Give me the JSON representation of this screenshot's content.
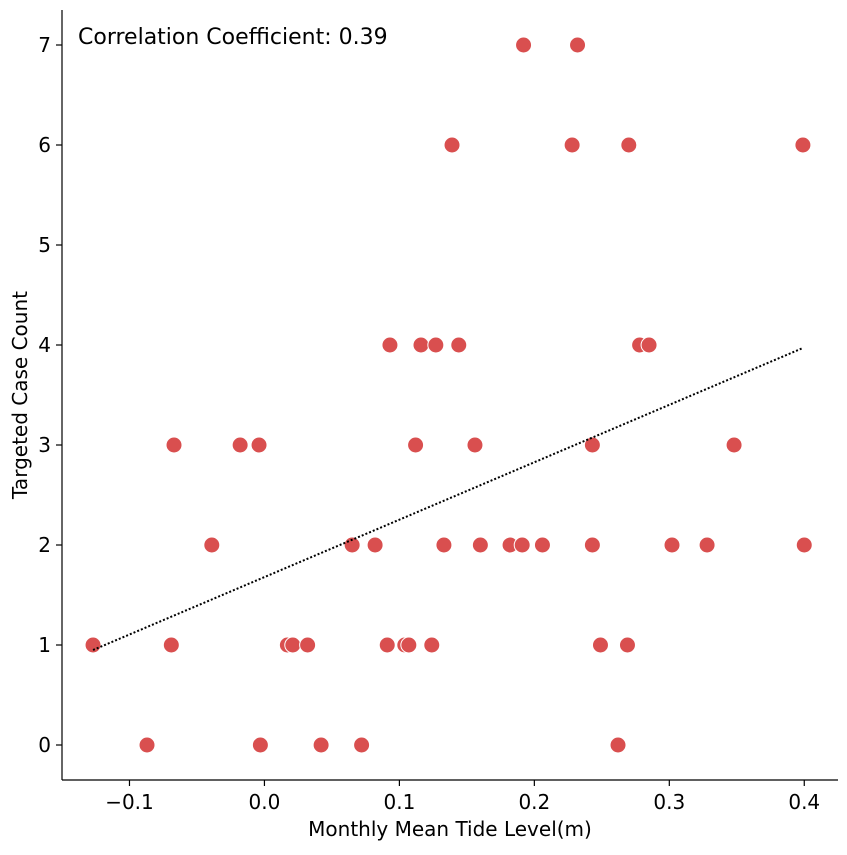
{
  "chart_data": {
    "type": "scatter",
    "annotation": "Correlation Coefficient: 0.39",
    "xlabel": "Monthly Mean Tide Level(m)",
    "ylabel": "Targeted Case Count",
    "xlim": [
      -0.15,
      0.425
    ],
    "ylim": [
      -0.35,
      7.35
    ],
    "xticks": [
      -0.1,
      0.0,
      0.1,
      0.2,
      0.3,
      0.4
    ],
    "xtick_labels": [
      "−0.1",
      "0.0",
      "0.1",
      "0.2",
      "0.3",
      "0.4"
    ],
    "yticks": [
      0,
      1,
      2,
      3,
      4,
      5,
      6,
      7
    ],
    "ytick_labels": [
      "0",
      "1",
      "2",
      "3",
      "4",
      "5",
      "6",
      "7"
    ],
    "grid": false,
    "point_color": "#d94f4f",
    "trend_color": "#000000",
    "trend_line": {
      "x": [
        -0.127,
        0.399
      ],
      "y": [
        0.95,
        3.97
      ]
    },
    "points": [
      {
        "x": -0.127,
        "y": 1
      },
      {
        "x": -0.087,
        "y": 0
      },
      {
        "x": -0.069,
        "y": 1
      },
      {
        "x": -0.067,
        "y": 3
      },
      {
        "x": -0.039,
        "y": 2
      },
      {
        "x": -0.018,
        "y": 3
      },
      {
        "x": -0.004,
        "y": 3
      },
      {
        "x": -0.003,
        "y": 0
      },
      {
        "x": 0.017,
        "y": 1
      },
      {
        "x": 0.021,
        "y": 1
      },
      {
        "x": 0.032,
        "y": 1
      },
      {
        "x": 0.042,
        "y": 0
      },
      {
        "x": 0.065,
        "y": 2
      },
      {
        "x": 0.072,
        "y": 0
      },
      {
        "x": 0.082,
        "y": 2
      },
      {
        "x": 0.091,
        "y": 1
      },
      {
        "x": 0.093,
        "y": 4
      },
      {
        "x": 0.104,
        "y": 1
      },
      {
        "x": 0.107,
        "y": 1
      },
      {
        "x": 0.112,
        "y": 3
      },
      {
        "x": 0.116,
        "y": 4
      },
      {
        "x": 0.124,
        "y": 1
      },
      {
        "x": 0.127,
        "y": 4
      },
      {
        "x": 0.133,
        "y": 2
      },
      {
        "x": 0.139,
        "y": 6
      },
      {
        "x": 0.144,
        "y": 4
      },
      {
        "x": 0.156,
        "y": 3
      },
      {
        "x": 0.16,
        "y": 2
      },
      {
        "x": 0.182,
        "y": 2
      },
      {
        "x": 0.191,
        "y": 2
      },
      {
        "x": 0.192,
        "y": 7
      },
      {
        "x": 0.206,
        "y": 2
      },
      {
        "x": 0.228,
        "y": 6
      },
      {
        "x": 0.232,
        "y": 7
      },
      {
        "x": 0.243,
        "y": 3
      },
      {
        "x": 0.243,
        "y": 2
      },
      {
        "x": 0.249,
        "y": 1
      },
      {
        "x": 0.262,
        "y": 0
      },
      {
        "x": 0.269,
        "y": 1
      },
      {
        "x": 0.27,
        "y": 6
      },
      {
        "x": 0.278,
        "y": 4
      },
      {
        "x": 0.285,
        "y": 4
      },
      {
        "x": 0.302,
        "y": 2
      },
      {
        "x": 0.328,
        "y": 2
      },
      {
        "x": 0.348,
        "y": 3
      },
      {
        "x": 0.399,
        "y": 6
      },
      {
        "x": 0.4,
        "y": 2
      }
    ]
  }
}
